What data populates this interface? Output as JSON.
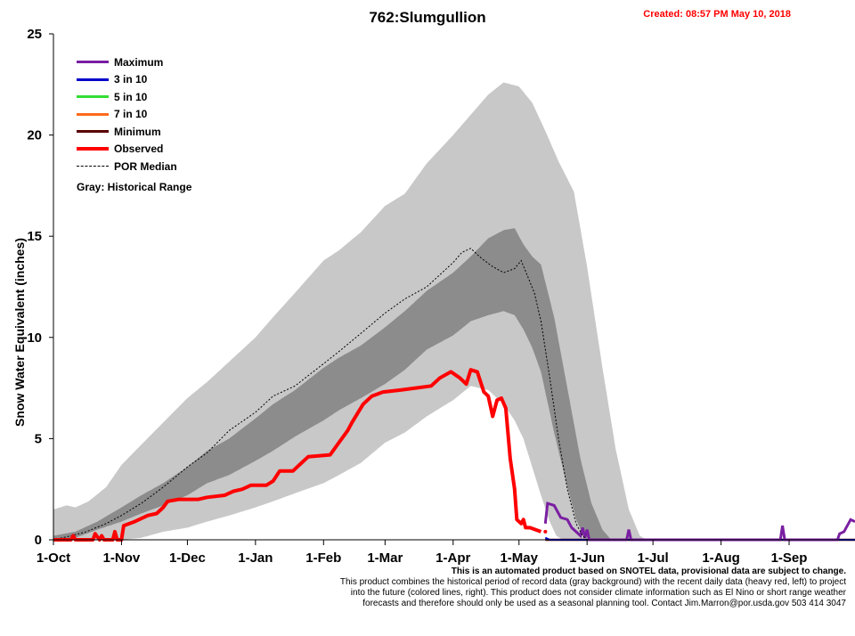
{
  "title": "762:Slumgullion",
  "created": "Created: 08:57 PM May 10, 2018",
  "footer": {
    "line1": "This is an automated product based on SNOTEL data, provisional data are subject to change.",
    "line2": "This product combines the historical period of record data (gray background) with the recent daily data (heavy red, left) to project",
    "line3": "into the future (colored lines, right). This product does not consider climate information such as El Nino or short range weather",
    "line4": "forecasts and therefore should only be used as a seasonal planning tool. Contact Jim.Marron@por.usda.gov 503 414 3047"
  },
  "legend": {
    "items": [
      {
        "label": "Maximum",
        "color": "#7a1fa2",
        "style": "solid"
      },
      {
        "label": "3 in 10",
        "color": "#0000cc",
        "style": "solid"
      },
      {
        "label": "5 in 10",
        "color": "#33dd33",
        "style": "solid"
      },
      {
        "label": "7 in 10",
        "color": "#ff6a1a",
        "style": "solid"
      },
      {
        "label": "Minimum",
        "color": "#5a0000",
        "style": "solid"
      },
      {
        "label": "Observed",
        "color": "#ff0000",
        "style": "solid-thick"
      },
      {
        "label": "POR Median",
        "color": "#000000",
        "style": "dotted"
      }
    ],
    "gray_note": "Gray: Historical Range"
  },
  "chart_data": {
    "type": "area",
    "title": "762:Slumgullion",
    "ylabel": "Snow Water Equivalent (inches)",
    "xlabel": "",
    "ylim": [
      0,
      25
    ],
    "yticks": [
      0,
      5,
      10,
      15,
      20,
      25
    ],
    "x_unit": "day of water year (0 = 1-Oct)",
    "xlim": [
      0,
      365
    ],
    "xticks": [
      {
        "label": "1-Oct",
        "day": 0
      },
      {
        "label": "1-Nov",
        "day": 31
      },
      {
        "label": "1-Dec",
        "day": 61
      },
      {
        "label": "1-Jan",
        "day": 92
      },
      {
        "label": "1-Feb",
        "day": 123
      },
      {
        "label": "1-Mar",
        "day": 151
      },
      {
        "label": "1-Apr",
        "day": 182
      },
      {
        "label": "1-May",
        "day": 212
      },
      {
        "label": "1-Jun",
        "day": 243
      },
      {
        "label": "1-Jul",
        "day": 273
      },
      {
        "label": "1-Aug",
        "day": 304
      },
      {
        "label": "1-Sep",
        "day": 335
      }
    ],
    "colors": {
      "range_light": "#c8c8c8",
      "range_dark": "#8c8c8c",
      "observed": "#ff0000",
      "median": "#000000",
      "maximum": "#7a1fa2",
      "minimum": "#5a0000",
      "p30": "#0000cc"
    },
    "historical_max": [
      [
        0,
        1.5
      ],
      [
        6,
        1.7
      ],
      [
        10,
        1.6
      ],
      [
        16,
        1.9
      ],
      [
        24,
        2.6
      ],
      [
        31,
        3.7
      ],
      [
        40,
        4.7
      ],
      [
        50,
        5.8
      ],
      [
        61,
        7.0
      ],
      [
        70,
        7.8
      ],
      [
        80,
        8.8
      ],
      [
        92,
        10.0
      ],
      [
        100,
        11.0
      ],
      [
        110,
        12.2
      ],
      [
        123,
        13.8
      ],
      [
        130,
        14.3
      ],
      [
        140,
        15.2
      ],
      [
        151,
        16.5
      ],
      [
        160,
        17.1
      ],
      [
        170,
        18.6
      ],
      [
        182,
        20.0
      ],
      [
        190,
        21.0
      ],
      [
        198,
        22.0
      ],
      [
        205,
        22.6
      ],
      [
        212,
        22.4
      ],
      [
        218,
        21.6
      ],
      [
        224,
        20.2
      ],
      [
        230,
        18.7
      ],
      [
        237,
        17.2
      ],
      [
        243,
        13.5
      ],
      [
        250,
        8.5
      ],
      [
        256,
        4.5
      ],
      [
        262,
        1.5
      ],
      [
        267,
        0.2
      ],
      [
        270,
        0
      ]
    ],
    "historical_p75": [
      [
        0,
        0.2
      ],
      [
        10,
        0.4
      ],
      [
        20,
        0.9
      ],
      [
        31,
        1.6
      ],
      [
        40,
        2.2
      ],
      [
        50,
        2.8
      ],
      [
        61,
        3.6
      ],
      [
        70,
        4.4
      ],
      [
        80,
        5.0
      ],
      [
        92,
        6.0
      ],
      [
        100,
        6.7
      ],
      [
        110,
        7.4
      ],
      [
        123,
        8.5
      ],
      [
        130,
        9.0
      ],
      [
        140,
        9.6
      ],
      [
        151,
        10.5
      ],
      [
        160,
        11.3
      ],
      [
        170,
        12.3
      ],
      [
        182,
        13.2
      ],
      [
        190,
        14.0
      ],
      [
        198,
        14.9
      ],
      [
        205,
        15.3
      ],
      [
        210,
        15.4
      ],
      [
        214,
        14.6
      ],
      [
        218,
        14.0
      ],
      [
        222,
        13.6
      ],
      [
        228,
        11.0
      ],
      [
        234,
        7.5
      ],
      [
        240,
        4.0
      ],
      [
        245,
        1.8
      ],
      [
        250,
        0.5
      ],
      [
        254,
        0
      ]
    ],
    "historical_p25": [
      [
        0,
        0
      ],
      [
        10,
        0.1
      ],
      [
        20,
        0.5
      ],
      [
        31,
        0.9
      ],
      [
        40,
        1.3
      ],
      [
        50,
        1.7
      ],
      [
        61,
        2.2
      ],
      [
        70,
        2.8
      ],
      [
        80,
        3.2
      ],
      [
        92,
        3.9
      ],
      [
        100,
        4.4
      ],
      [
        110,
        5.1
      ],
      [
        123,
        5.9
      ],
      [
        130,
        6.4
      ],
      [
        140,
        7.0
      ],
      [
        151,
        7.7
      ],
      [
        160,
        8.4
      ],
      [
        170,
        9.4
      ],
      [
        182,
        10.1
      ],
      [
        190,
        10.8
      ],
      [
        198,
        11.1
      ],
      [
        205,
        11.3
      ],
      [
        210,
        11.1
      ],
      [
        214,
        10.4
      ],
      [
        218,
        9.5
      ],
      [
        222,
        8.3
      ],
      [
        228,
        5.3
      ],
      [
        234,
        2.6
      ],
      [
        238,
        1.0
      ],
      [
        241,
        0.3
      ],
      [
        244,
        0
      ]
    ],
    "historical_min": [
      [
        0,
        0
      ],
      [
        31,
        0
      ],
      [
        40,
        0.1
      ],
      [
        50,
        0.4
      ],
      [
        61,
        0.6
      ],
      [
        70,
        0.9
      ],
      [
        80,
        1.2
      ],
      [
        92,
        1.6
      ],
      [
        100,
        1.9
      ],
      [
        110,
        2.3
      ],
      [
        123,
        2.8
      ],
      [
        130,
        3.2
      ],
      [
        140,
        3.8
      ],
      [
        151,
        4.8
      ],
      [
        160,
        5.3
      ],
      [
        170,
        6.1
      ],
      [
        182,
        6.9
      ],
      [
        190,
        7.6
      ],
      [
        198,
        7.4
      ],
      [
        205,
        6.7
      ],
      [
        210,
        5.9
      ],
      [
        214,
        5.0
      ],
      [
        218,
        3.6
      ],
      [
        222,
        2.2
      ],
      [
        226,
        0.9
      ],
      [
        229,
        0.2
      ],
      [
        232,
        0
      ]
    ],
    "median": [
      [
        0,
        0
      ],
      [
        8,
        0.2
      ],
      [
        15,
        0.4
      ],
      [
        24,
        0.8
      ],
      [
        31,
        1.2
      ],
      [
        40,
        1.8
      ],
      [
        50,
        2.6
      ],
      [
        61,
        3.6
      ],
      [
        70,
        4.3
      ],
      [
        80,
        5.4
      ],
      [
        92,
        6.3
      ],
      [
        100,
        7.1
      ],
      [
        110,
        7.6
      ],
      [
        123,
        8.7
      ],
      [
        130,
        9.3
      ],
      [
        140,
        10.2
      ],
      [
        151,
        11.2
      ],
      [
        160,
        11.9
      ],
      [
        170,
        12.5
      ],
      [
        182,
        13.7
      ],
      [
        186,
        14.2
      ],
      [
        190,
        14.4
      ],
      [
        195,
        13.9
      ],
      [
        200,
        13.5
      ],
      [
        205,
        13.2
      ],
      [
        210,
        13.4
      ],
      [
        213,
        13.8
      ],
      [
        216,
        13.0
      ],
      [
        219,
        12.2
      ],
      [
        222,
        10.8
      ],
      [
        226,
        8.0
      ],
      [
        230,
        5.0
      ],
      [
        234,
        2.5
      ],
      [
        238,
        0.8
      ],
      [
        241,
        0.2
      ],
      [
        243,
        0
      ]
    ],
    "observed": [
      [
        0,
        0
      ],
      [
        8,
        0
      ],
      [
        9,
        0.2
      ],
      [
        10,
        0
      ],
      [
        18,
        0
      ],
      [
        19,
        0.3
      ],
      [
        21,
        0
      ],
      [
        22,
        0.2
      ],
      [
        23,
        0
      ],
      [
        27,
        0
      ],
      [
        28,
        0.4
      ],
      [
        29,
        0
      ],
      [
        31,
        0
      ],
      [
        32,
        0.7
      ],
      [
        37,
        0.9
      ],
      [
        43,
        1.2
      ],
      [
        47,
        1.3
      ],
      [
        50,
        1.6
      ],
      [
        52,
        1.9
      ],
      [
        57,
        2.0
      ],
      [
        66,
        2.0
      ],
      [
        70,
        2.1
      ],
      [
        78,
        2.2
      ],
      [
        82,
        2.4
      ],
      [
        86,
        2.5
      ],
      [
        90,
        2.7
      ],
      [
        97,
        2.7
      ],
      [
        100,
        2.9
      ],
      [
        103,
        3.4
      ],
      [
        109,
        3.4
      ],
      [
        112,
        3.7
      ],
      [
        116,
        4.1
      ],
      [
        126,
        4.2
      ],
      [
        130,
        4.8
      ],
      [
        134,
        5.4
      ],
      [
        136,
        5.8
      ],
      [
        141,
        6.7
      ],
      [
        145,
        7.1
      ],
      [
        150,
        7.3
      ],
      [
        158,
        7.4
      ],
      [
        165,
        7.5
      ],
      [
        172,
        7.6
      ],
      [
        176,
        8.0
      ],
      [
        181,
        8.3
      ],
      [
        185,
        8.0
      ],
      [
        188,
        7.7
      ],
      [
        190,
        8.4
      ],
      [
        193,
        8.3
      ],
      [
        196,
        7.3
      ],
      [
        198,
        7.1
      ],
      [
        200,
        6.1
      ],
      [
        202,
        6.9
      ],
      [
        204,
        7.0
      ],
      [
        206,
        6.5
      ],
      [
        208,
        4.0
      ],
      [
        210,
        2.5
      ],
      [
        211,
        1.0
      ],
      [
        213,
        0.8
      ],
      [
        214,
        1.0
      ],
      [
        215,
        0.6
      ],
      [
        217,
        0.6
      ],
      [
        222,
        0.4
      ]
    ],
    "forecast_maximum": [
      [
        224,
        0.8
      ],
      [
        225,
        1.8
      ],
      [
        228,
        1.7
      ],
      [
        231,
        1.1
      ],
      [
        234,
        1.0
      ],
      [
        236,
        0.6
      ],
      [
        240,
        0.2
      ],
      [
        241,
        0.6
      ],
      [
        242,
        0.1
      ],
      [
        243,
        0.5
      ],
      [
        244,
        0
      ],
      [
        261,
        0
      ],
      [
        262,
        0.5
      ],
      [
        263,
        0
      ],
      [
        331,
        0
      ],
      [
        332,
        0.7
      ],
      [
        333,
        0
      ],
      [
        357,
        0
      ],
      [
        358,
        0.3
      ],
      [
        360,
        0.4
      ],
      [
        363,
        1.0
      ],
      [
        365,
        0.9
      ]
    ],
    "forecast_minimum": [
      [
        224,
        0
      ],
      [
        365,
        0
      ]
    ],
    "forecast_p30": [
      [
        224,
        0.1
      ],
      [
        226,
        0
      ],
      [
        365,
        0
      ]
    ]
  }
}
